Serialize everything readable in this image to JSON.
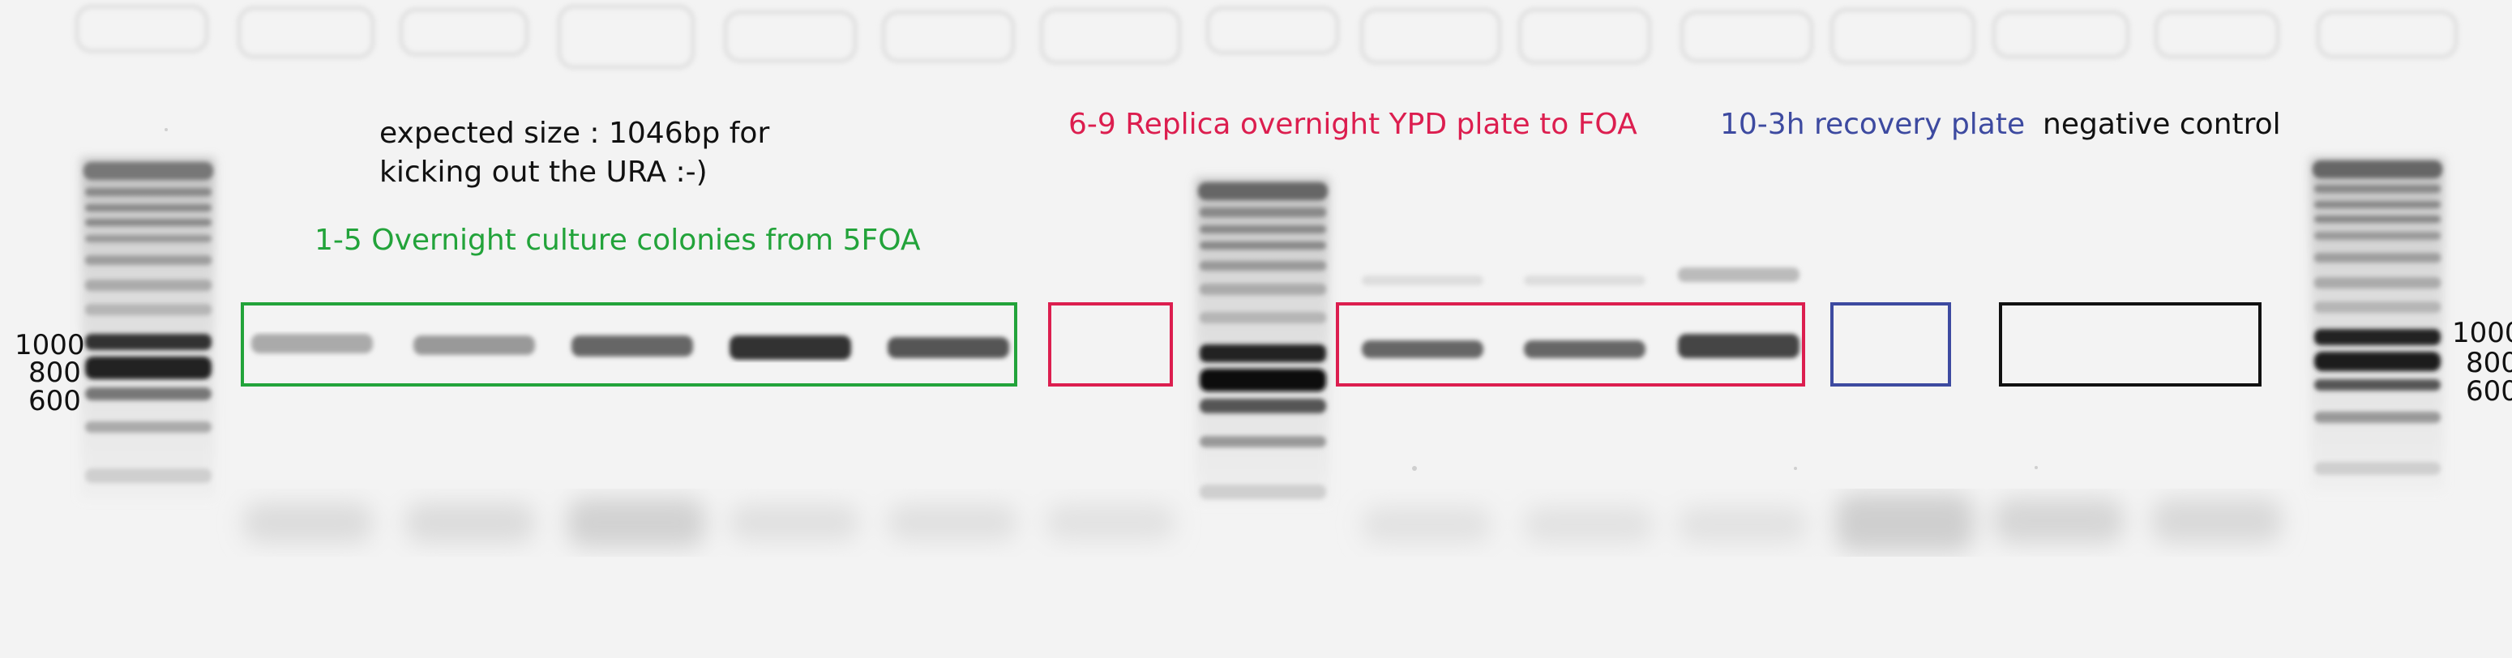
{
  "annotations": {
    "expected_line1": "expected size : 1046bp for",
    "expected_line2": "kicking out the URA :-)",
    "group_1_5": "1-5 Overnight culture colonies from 5FOA",
    "group_6_9": "6-9 Replica overnight YPD plate to FOA",
    "group_10": "10-3h recovery plate",
    "group_neg": "negative control"
  },
  "markers_left": [
    "1000",
    "800",
    "600"
  ],
  "markers_right": [
    "1000",
    "800",
    "600"
  ],
  "colors": {
    "green": "#22a33a",
    "crimson": "#dc1e4f",
    "blue": "#3d4aa0",
    "black": "#111111"
  }
}
